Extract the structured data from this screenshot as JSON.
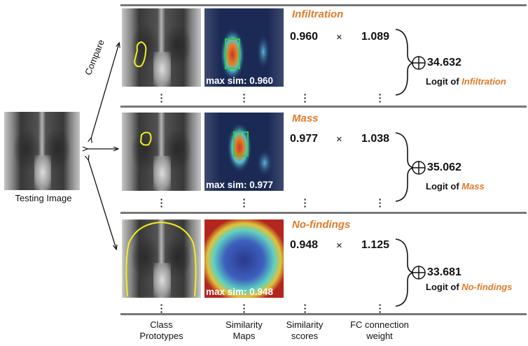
{
  "testing_image": {
    "caption": "Testing Image"
  },
  "compare_label": "Compare",
  "rows": [
    {
      "class_name": "Infiltration",
      "max_sim": "max sim: 0.960",
      "score": "0.960",
      "times": "×",
      "weight": "1.089",
      "logit_value": "34.632",
      "logit_prefix": "Logit of ",
      "logit_class": "Infiltration"
    },
    {
      "class_name": "Mass",
      "max_sim": "max sim: 0.977",
      "score": "0.977",
      "times": "×",
      "weight": "1.038",
      "logit_value": "35.062",
      "logit_prefix": "Logit of ",
      "logit_class": "Mass"
    },
    {
      "class_name": "No-findings",
      "max_sim": "max sim: 0.948",
      "score": "0.948",
      "times": "×",
      "weight": "1.125",
      "logit_value": "33.681",
      "logit_prefix": "Logit of ",
      "logit_class": "No-findings"
    }
  ],
  "columns": {
    "prototypes": [
      "Class",
      "Prototypes"
    ],
    "maps": [
      "Similarity",
      "Maps"
    ],
    "scores": [
      "Similarity",
      "scores"
    ],
    "weights": [
      "FC connection",
      "weight"
    ]
  },
  "colors": {
    "accent": "#e07b29",
    "contour": "#f2ee1f",
    "box": "#2ecc40"
  }
}
